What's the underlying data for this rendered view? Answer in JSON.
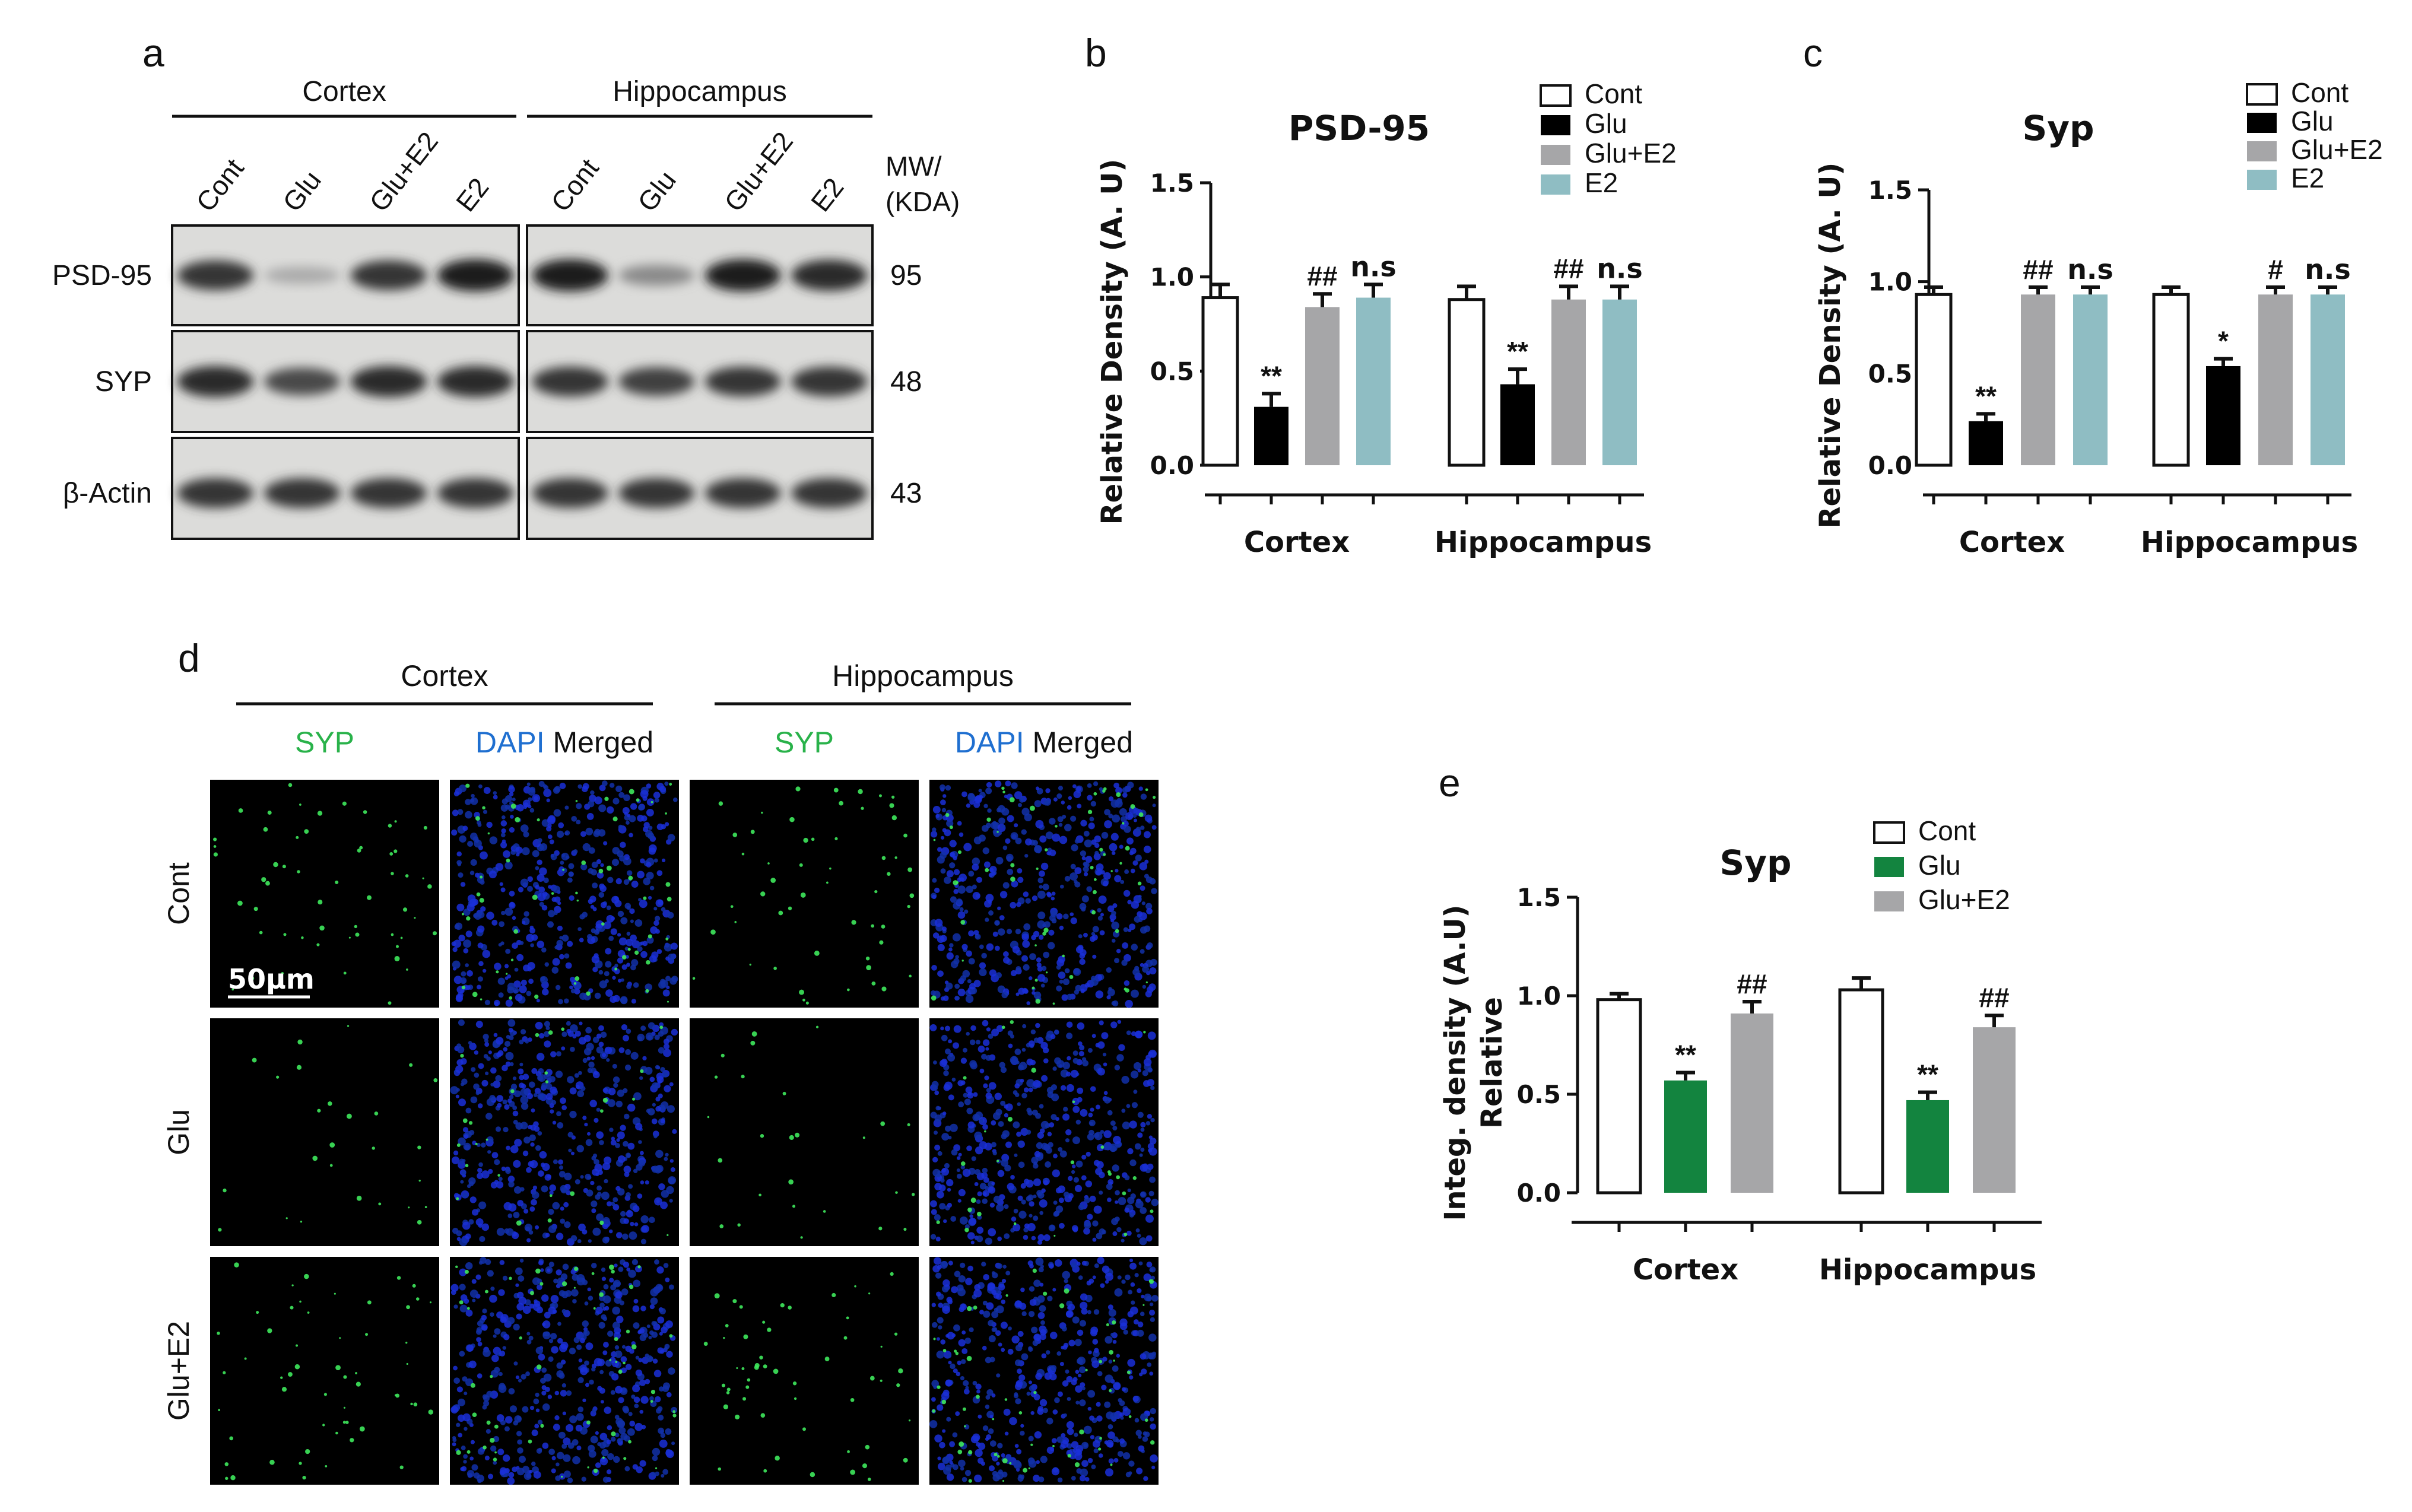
{
  "colors": {
    "cont": "#ffffff",
    "glu": "#000000",
    "glu_e2": "#a6a6a8",
    "e2": "#8fbdc3",
    "glu_green": "#13843f",
    "syp_green": "#29b24a",
    "dapi_blue": "#1f6fd0"
  },
  "panel_a": {
    "letter": "a",
    "regions": [
      "Cortex",
      "Hippocampus"
    ],
    "lanes": [
      "Cont",
      "Glu",
      "Glu+E2",
      "E2"
    ],
    "mw_header": [
      "MW/",
      "(KDA)"
    ],
    "blots": [
      {
        "protein": "PSD-95",
        "mw": "95",
        "intensities": [
          [
            0.85,
            0.3,
            0.85,
            0.95
          ],
          [
            0.95,
            0.45,
            0.95,
            0.9
          ]
        ]
      },
      {
        "protein": "SYP",
        "mw": "48",
        "intensities": [
          [
            0.9,
            0.75,
            0.9,
            0.9
          ],
          [
            0.85,
            0.8,
            0.85,
            0.85
          ]
        ]
      },
      {
        "protein": "β-Actin",
        "mw": "43",
        "intensities": [
          [
            0.85,
            0.85,
            0.85,
            0.85
          ],
          [
            0.85,
            0.85,
            0.85,
            0.85
          ]
        ]
      }
    ]
  },
  "panel_d": {
    "letter": "d",
    "regions": [
      "Cortex",
      "Hippocampus"
    ],
    "col_headers": [
      {
        "parts": [
          {
            "text": "SYP",
            "color": "green"
          }
        ]
      },
      {
        "parts": [
          {
            "text": "DAPI",
            "color": "blue"
          },
          {
            "text": " Merged",
            "color": "black"
          }
        ]
      },
      {
        "parts": [
          {
            "text": "SYP",
            "color": "green"
          }
        ]
      },
      {
        "parts": [
          {
            "text": "DAPI",
            "color": "blue"
          },
          {
            "text": " Merged",
            "color": "black"
          }
        ]
      }
    ],
    "rows": [
      "Cont",
      "Glu",
      "Glu+E2"
    ],
    "scale_bar": "50μm"
  },
  "chart_data": [
    {
      "panel": "b",
      "type": "bar",
      "title": "PSD-95",
      "ylabel": "Relative Density (A. U)",
      "ylim": [
        0,
        1.5
      ],
      "yticks": [
        "0.0",
        "0.5",
        "1.0",
        "1.5"
      ],
      "groups": [
        "Cortex",
        "Hippocampus"
      ],
      "legend": [
        "Cont",
        "Glu",
        "Glu+E2",
        "E2"
      ],
      "legend_position": "top-right",
      "series": [
        {
          "name": "Cont",
          "values": [
            0.89,
            0.88
          ],
          "errors": [
            0.07,
            0.07
          ],
          "marks": [
            "",
            ""
          ]
        },
        {
          "name": "Glu",
          "values": [
            0.31,
            0.43
          ],
          "errors": [
            0.07,
            0.08
          ],
          "marks": [
            "**",
            "**"
          ]
        },
        {
          "name": "Glu+E2",
          "values": [
            0.84,
            0.88
          ],
          "errors": [
            0.07,
            0.07
          ],
          "marks": [
            "##",
            "##"
          ]
        },
        {
          "name": "E2",
          "values": [
            0.89,
            0.88
          ],
          "errors": [
            0.07,
            0.07
          ],
          "marks": [
            "n.s",
            "n.s"
          ]
        }
      ]
    },
    {
      "panel": "c",
      "type": "bar",
      "title": "Syp",
      "ylabel": "Relative Density (A. U)",
      "ylim": [
        0,
        1.5
      ],
      "yticks": [
        "0.0",
        "0.5",
        "1.0",
        "1.5"
      ],
      "groups": [
        "Cortex",
        "Hippocampus"
      ],
      "legend": [
        "Cont",
        "Glu",
        "Glu+E2",
        "E2"
      ],
      "legend_position": "top-right",
      "series": [
        {
          "name": "Cont",
          "values": [
            0.93,
            0.93
          ],
          "errors": [
            0.04,
            0.04
          ],
          "marks": [
            "",
            ""
          ]
        },
        {
          "name": "Glu",
          "values": [
            0.24,
            0.54
          ],
          "errors": [
            0.04,
            0.04
          ],
          "marks": [
            "**",
            "*"
          ]
        },
        {
          "name": "Glu+E2",
          "values": [
            0.93,
            0.93
          ],
          "errors": [
            0.04,
            0.04
          ],
          "marks": [
            "##",
            "#"
          ]
        },
        {
          "name": "E2",
          "values": [
            0.93,
            0.93
          ],
          "errors": [
            0.04,
            0.04
          ],
          "marks": [
            "n.s",
            "n.s"
          ]
        }
      ]
    },
    {
      "panel": "e",
      "type": "bar",
      "title": "Syp",
      "ylabel": [
        "Integ. density (A.U)",
        "Relative"
      ],
      "ylim": [
        0,
        1.5
      ],
      "yticks": [
        "0.0",
        "0.5",
        "1.0",
        "1.5"
      ],
      "groups": [
        "Cortex",
        "Hippocampus"
      ],
      "legend": [
        "Cont",
        "Glu",
        "Glu+E2"
      ],
      "legend_position": "top-right",
      "series": [
        {
          "name": "Cont",
          "values": [
            0.98,
            1.03
          ],
          "errors": [
            0.03,
            0.06
          ],
          "marks": [
            "",
            ""
          ]
        },
        {
          "name": "Glu",
          "values": [
            0.57,
            0.47
          ],
          "errors": [
            0.04,
            0.04
          ],
          "marks": [
            "**",
            "**"
          ]
        },
        {
          "name": "Glu+E2",
          "values": [
            0.91,
            0.84
          ],
          "errors": [
            0.06,
            0.06
          ],
          "marks": [
            "##",
            "##"
          ]
        }
      ]
    }
  ]
}
